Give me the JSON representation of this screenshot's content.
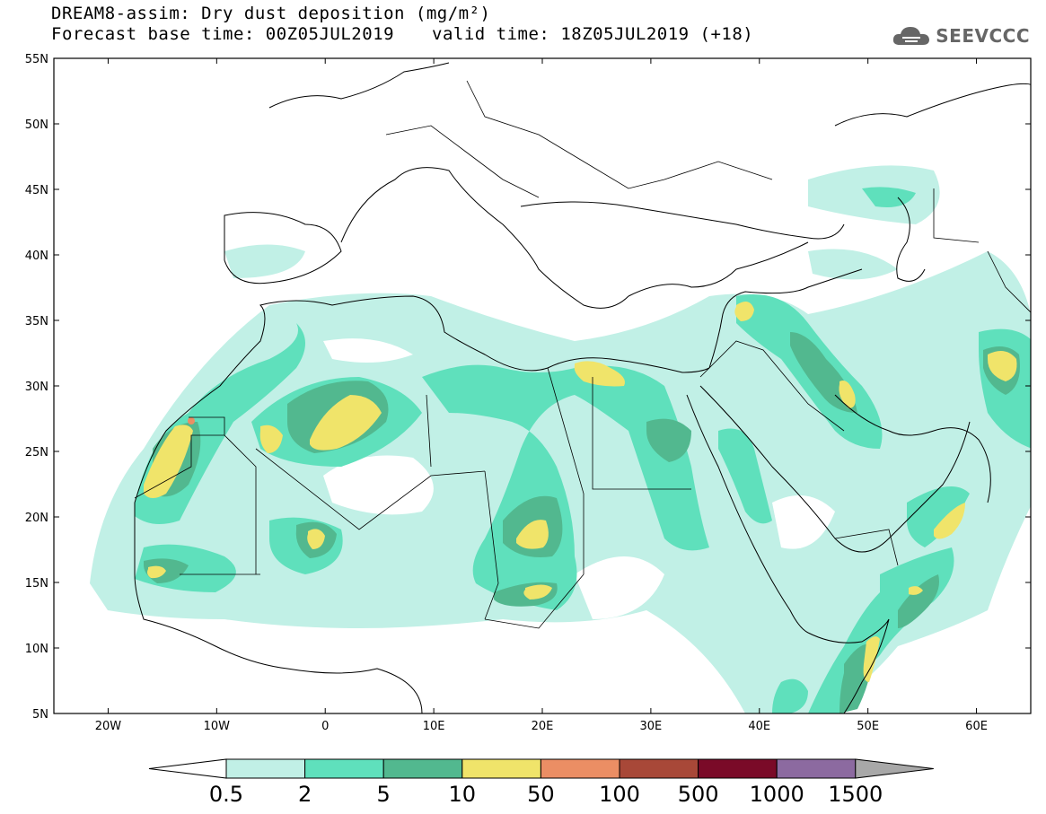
{
  "title": {
    "line1": "DREAM8-assim: Dry dust deposition (mg/m²)",
    "base_time": "Forecast base time: 00Z05JUL2019",
    "valid_time": "valid time: 18Z05JUL2019 (+18)"
  },
  "logo": {
    "text": "SEEVCCC",
    "icon": "cloud-icon"
  },
  "map": {
    "lon_range": [
      -25,
      65
    ],
    "lat_range": [
      5,
      55
    ],
    "lat_labels": [
      "55N",
      "50N",
      "45N",
      "40N",
      "35N",
      "30N",
      "25N",
      "20N",
      "15N",
      "10N",
      "5N"
    ],
    "lon_labels": [
      "20W",
      "10W",
      "0",
      "10E",
      "20E",
      "30E",
      "40E",
      "50E",
      "60E"
    ]
  },
  "legend": {
    "thresholds": [
      "0.5",
      "2",
      "5",
      "10",
      "50",
      "100",
      "500",
      "1000",
      "1500"
    ],
    "colors": [
      "#c1f0e6",
      "#5fe0bc",
      "#52b88f",
      "#f0e46a",
      "#eb8e64",
      "#a84838",
      "#7a0a28",
      "#8c6aa0",
      "#a8a8a8"
    ]
  },
  "colors": {
    "light": "#c1f0e6",
    "mid": "#5fe0bc",
    "dark": "#52b88f",
    "yellow": "#f0e46a",
    "orange": "#eb8e64"
  }
}
